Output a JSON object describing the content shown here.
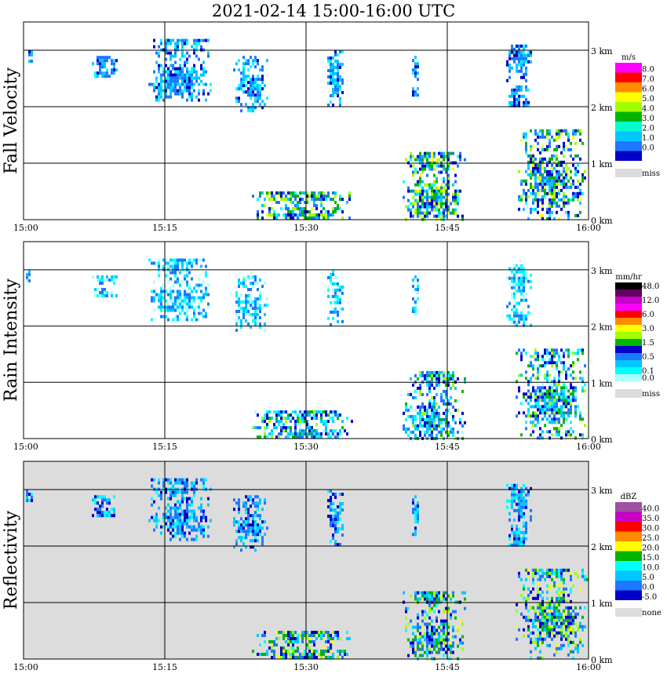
{
  "title": "2021-02-14   15:00-16:00 UTC",
  "x_ticks": [
    "15:00",
    "15:15",
    "15:30",
    "15:45",
    "16:00"
  ],
  "y_ticks": [
    "3 km",
    "2 km",
    "1 km",
    "0 km"
  ],
  "panels": [
    {
      "label": "Fall Velocity",
      "unit": "m/s",
      "background": "#ffffff",
      "legend": [
        {
          "label": "8.0",
          "color": "#ff00ff"
        },
        {
          "label": "7.0",
          "color": "#ff0000"
        },
        {
          "label": "6.0",
          "color": "#ff8c00"
        },
        {
          "label": "5.0",
          "color": "#ffff00"
        },
        {
          "label": "4.0",
          "color": "#a0ff00"
        },
        {
          "label": "3.0",
          "color": "#00b400"
        },
        {
          "label": "2.0",
          "color": "#00ffcc"
        },
        {
          "label": "1.0",
          "color": "#00c8ff"
        },
        {
          "label": "0.0",
          "color": "#1e78ff"
        },
        {
          "label": "",
          "color": "#0000c8"
        }
      ],
      "missing": {
        "label": "miss",
        "color": "#dcdcdc"
      },
      "palette": [
        "#00ffff",
        "#00c8ff",
        "#1e78ff",
        "#0000c8",
        "#00b400",
        "#a0ff00",
        "#ffff00",
        "#ff00ff"
      ]
    },
    {
      "label": "Rain Intensity",
      "unit": "mm/hr",
      "background": "#ffffff",
      "legend": [
        {
          "label": "48.0",
          "color": "#000000"
        },
        {
          "label": "",
          "color": "#640064"
        },
        {
          "label": "12.0",
          "color": "#c800c8"
        },
        {
          "label": "",
          "color": "#ff00ff"
        },
        {
          "label": "6.0",
          "color": "#ff0000"
        },
        {
          "label": "",
          "color": "#ff8c00"
        },
        {
          "label": "3.0",
          "color": "#ffff00"
        },
        {
          "label": "",
          "color": "#a0ff00"
        },
        {
          "label": "1.5",
          "color": "#00b400"
        },
        {
          "label": "",
          "color": "#0000c8"
        },
        {
          "label": "0.5",
          "color": "#1e78ff"
        },
        {
          "label": "",
          "color": "#00c8ff"
        },
        {
          "label": "0.1",
          "color": "#00ffff"
        },
        {
          "label": "0.0",
          "color": "#aaffff"
        }
      ],
      "missing": {
        "label": "miss",
        "color": "#dcdcdc"
      },
      "palette": [
        "#aaffff",
        "#00ffff",
        "#00c8ff",
        "#1e78ff",
        "#0000c8",
        "#00b400",
        "#a0ff00",
        "#ffff00"
      ]
    },
    {
      "label": "Reflectivity",
      "unit": "dBZ",
      "background": "#dcdcdc",
      "legend": [
        {
          "label": "40.0",
          "color": "#a050a0"
        },
        {
          "label": "35.0",
          "color": "#c800c8"
        },
        {
          "label": "30.0",
          "color": "#ff0000"
        },
        {
          "label": "25.0",
          "color": "#ff8c00"
        },
        {
          "label": "20.0",
          "color": "#ffff00"
        },
        {
          "label": "15.0",
          "color": "#00b400"
        },
        {
          "label": "10.0",
          "color": "#00ffff"
        },
        {
          "label": "5.0",
          "color": "#00c8ff"
        },
        {
          "label": "0.0",
          "color": "#1e78ff"
        },
        {
          "label": "-5.0",
          "color": "#0000c8"
        }
      ],
      "missing": {
        "label": "none",
        "color": "#dcdcdc"
      },
      "palette": [
        "#00ffff",
        "#00c8ff",
        "#1e78ff",
        "#0000c8",
        "#00b400",
        "#a0ff00",
        "#ffff00",
        "#ff8c00"
      ]
    }
  ],
  "chart_data": {
    "type": "heatmap",
    "title": "2021-02-14   15:00-16:00 UTC",
    "x": {
      "label": "",
      "ticks": [
        "15:00",
        "15:15",
        "15:30",
        "15:45",
        "16:00"
      ],
      "range": [
        "15:00",
        "16:00"
      ]
    },
    "y": {
      "label": "",
      "ticks": [
        "0 km",
        "1 km",
        "2 km",
        "3 km"
      ],
      "range": [
        0,
        3.5
      ]
    },
    "grid": true,
    "panels": [
      "Fall Velocity",
      "Rain Intensity",
      "Reflectivity"
    ],
    "echo_regions": [
      {
        "start": "15:00",
        "end": "15:01",
        "bottom_km": 2.8,
        "top_km": 3.0
      },
      {
        "start": "15:07",
        "end": "15:10",
        "bottom_km": 2.5,
        "top_km": 2.9
      },
      {
        "start": "15:13",
        "end": "15:20",
        "bottom_km": 2.1,
        "top_km": 3.2
      },
      {
        "start": "15:22",
        "end": "15:26",
        "bottom_km": 1.9,
        "top_km": 2.9
      },
      {
        "start": "15:32",
        "end": "15:34",
        "bottom_km": 2.0,
        "top_km": 3.0
      },
      {
        "start": "15:41",
        "end": "15:42",
        "bottom_km": 2.2,
        "top_km": 2.9
      },
      {
        "start": "15:51",
        "end": "15:54",
        "bottom_km": 2.0,
        "top_km": 3.1
      },
      {
        "start": "15:24",
        "end": "15:35",
        "bottom_km": 0.0,
        "top_km": 0.5
      },
      {
        "start": "15:40",
        "end": "15:47",
        "bottom_km": 0.0,
        "top_km": 1.2
      },
      {
        "start": "15:52",
        "end": "16:00",
        "bottom_km": 0.0,
        "top_km": 1.6
      }
    ]
  }
}
